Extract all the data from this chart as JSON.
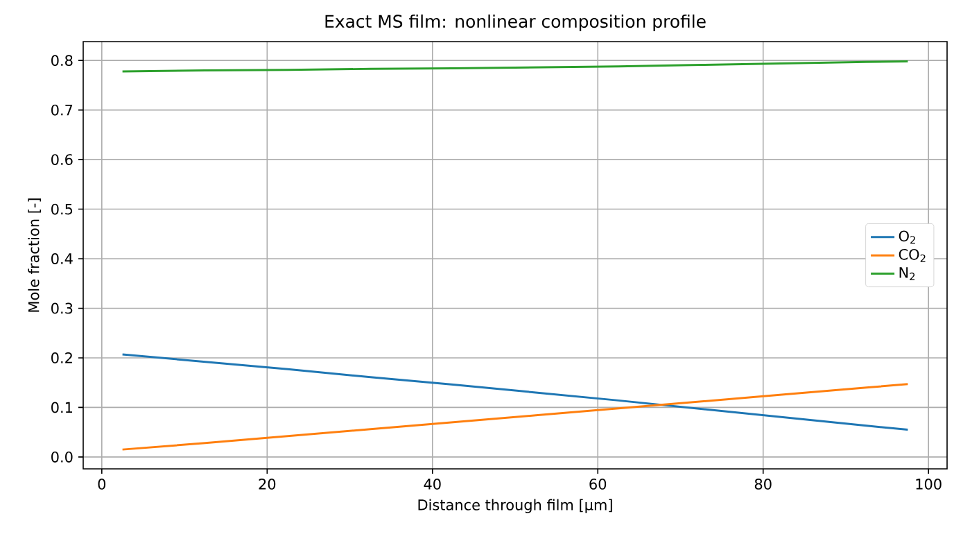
{
  "chart_data": {
    "type": "line",
    "title": "Exact MS film: nonlinear composition profile",
    "xlabel": "Distance through film [μm]",
    "ylabel": "Mole fraction [-]",
    "x": [
      2.5,
      12.5,
      22.5,
      32.5,
      42.5,
      52.5,
      62.5,
      72.5,
      82.5,
      92.5,
      97.5
    ],
    "series": [
      {
        "name": "O$_{2}$",
        "color": "#1f77b4",
        "values": [
          0.207,
          0.192,
          0.177,
          0.161,
          0.146,
          0.13,
          0.114,
          0.097,
          0.08,
          0.063,
          0.055
        ]
      },
      {
        "name": "CO$_{2}$",
        "color": "#ff7f0e",
        "values": [
          0.015,
          0.028,
          0.042,
          0.056,
          0.07,
          0.084,
          0.098,
          0.112,
          0.126,
          0.14,
          0.147
        ]
      },
      {
        "name": "N$_{2}$",
        "color": "#2ca02c",
        "values": [
          0.778,
          0.78,
          0.781,
          0.783,
          0.784,
          0.786,
          0.788,
          0.791,
          0.794,
          0.797,
          0.798
        ]
      }
    ],
    "xlim": [
      -2.25,
      102.25
    ],
    "ylim": [
      -0.024,
      0.838
    ],
    "xticks": [
      0,
      20,
      40,
      60,
      80,
      100
    ],
    "yticks": [
      {
        "value": 0,
        "label": "0.0"
      },
      {
        "value": 0.1,
        "label": "0.1"
      },
      {
        "value": 0.2,
        "label": "0.2"
      },
      {
        "value": 0.3,
        "label": "0.3"
      },
      {
        "value": 0.4,
        "label": "0.4"
      },
      {
        "value": 0.5,
        "label": "0.5"
      },
      {
        "value": 0.6,
        "label": "0.6"
      },
      {
        "value": 0.7,
        "label": "0.7"
      },
      {
        "value": 0.8,
        "label": "0.8"
      }
    ],
    "grid": true,
    "legend": "center right",
    "marker": "none",
    "line_style": "solid"
  }
}
